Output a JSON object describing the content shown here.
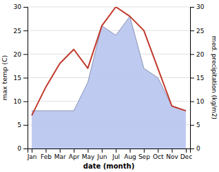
{
  "chart_data": {
    "type": "line",
    "xlabel": "date (month)",
    "ylabel": "max temp (C)",
    "y2label": "med. precipitation (kg/m2)",
    "categories": [
      "Jan",
      "Feb",
      "Mar",
      "Apr",
      "May",
      "Jun",
      "Jul",
      "Aug",
      "Sep",
      "Oct",
      "Nov",
      "Dec"
    ],
    "series": [
      {
        "type": "area",
        "axis": "y2",
        "color": "#b8c4f0",
        "values": [
          8,
          8,
          8,
          8,
          14,
          26,
          24,
          28,
          17,
          15,
          9,
          8
        ]
      },
      {
        "type": "line",
        "color": "#c0392b",
        "values": [
          7,
          13,
          18,
          21,
          17,
          26,
          30,
          28,
          25,
          17,
          9,
          8
        ]
      }
    ],
    "ylim": [
      0,
      30
    ],
    "yticks": [
      0,
      5,
      10,
      15,
      20,
      25,
      30
    ],
    "y2lim": [
      0,
      30
    ],
    "y2ticks": [
      0,
      5,
      10,
      15,
      20,
      25,
      30
    ],
    "grid": true
  }
}
